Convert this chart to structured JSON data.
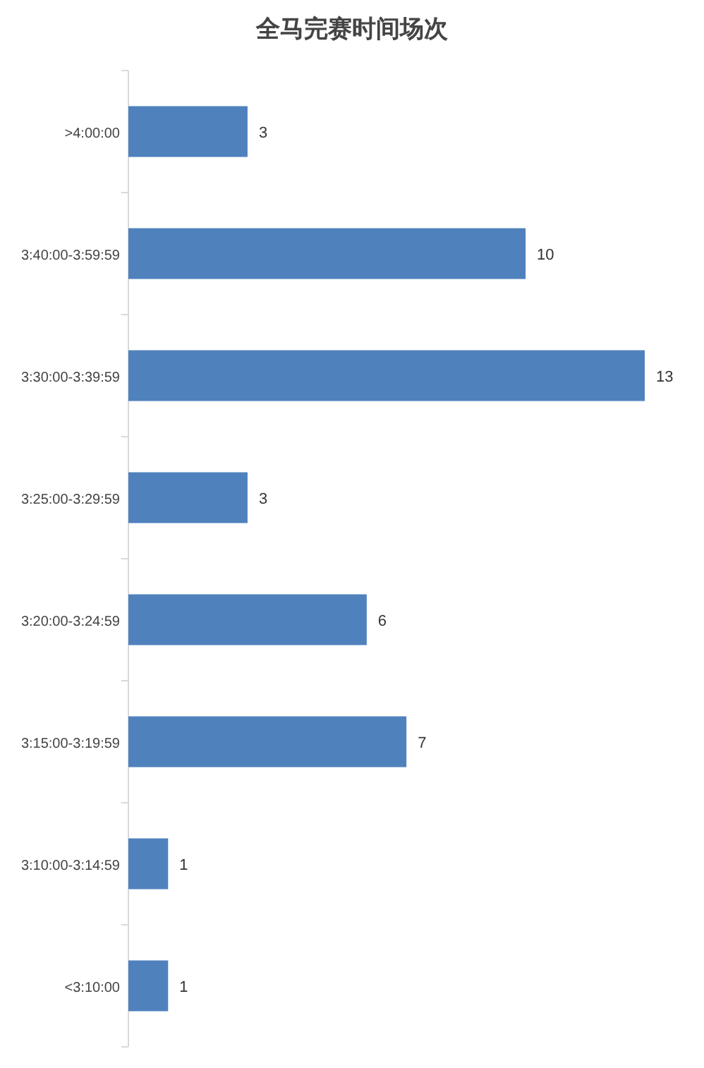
{
  "chart_data": {
    "type": "bar",
    "orientation": "horizontal",
    "title": "全马完赛时间场次",
    "categories": [
      ">4:00:00",
      "3:40:00-3:59:59",
      "3:30:00-3:39:59",
      "3:25:00-3:29:59",
      "3:20:00-3:24:59",
      "3:15:00-3:19:59",
      "3:10:00-3:14:59",
      "<3:10:00"
    ],
    "values": [
      3,
      10,
      13,
      3,
      6,
      7,
      1,
      1
    ],
    "color": "#4f81bd",
    "data_labels": true
  }
}
